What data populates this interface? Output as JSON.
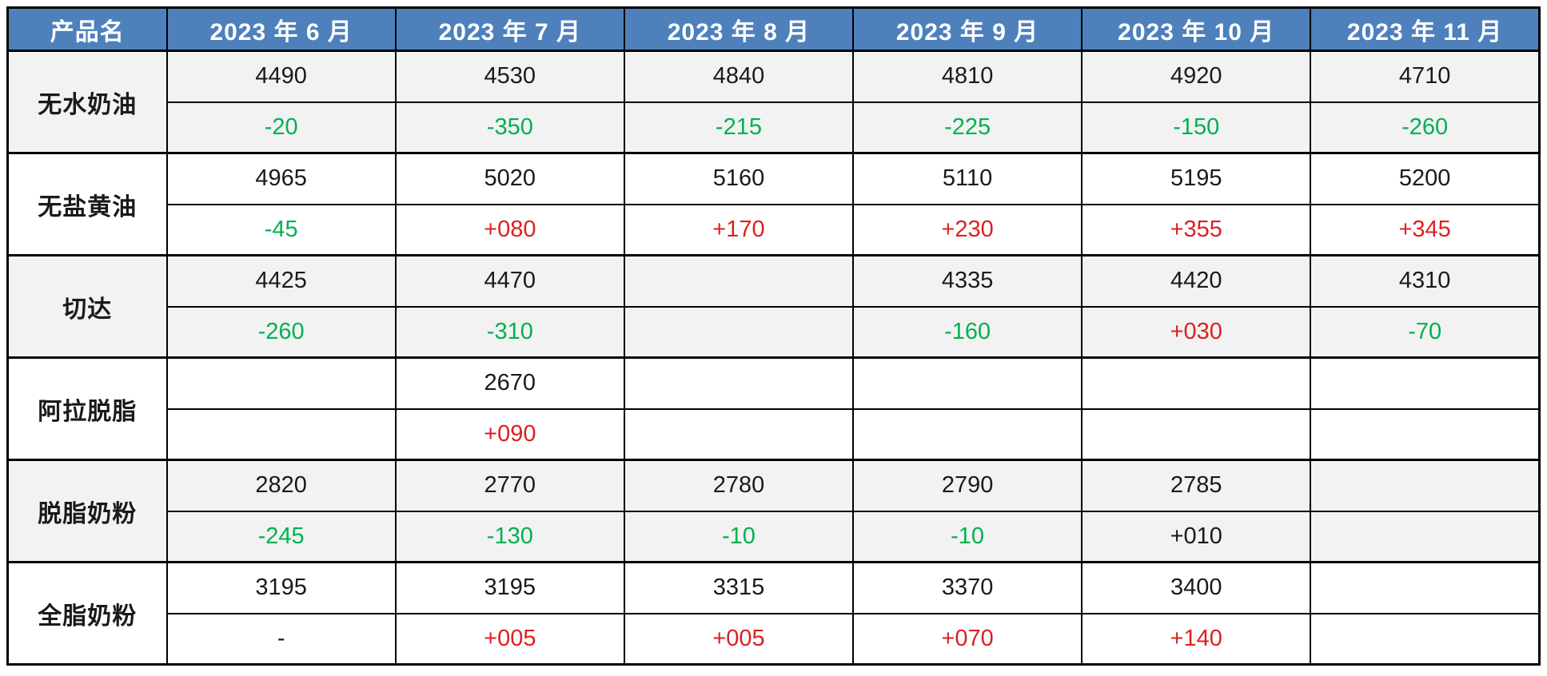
{
  "colors": {
    "header_bg": "#4E80BC",
    "header_text": "#FFFFFF",
    "band_gray": "#F2F2F2",
    "band_white": "#FFFFFF",
    "negative_green": "#00B050",
    "positive_red": "#DC2020",
    "neutral_black": "#1A1A1A",
    "border": "#000000"
  },
  "header": {
    "columns": [
      "产品名",
      "2023 年 6 月",
      "2023 年 7 月",
      "2023 年 8 月",
      "2023 年 9 月",
      "2023 年 10 月",
      "2023 年 11 月"
    ]
  },
  "products": [
    {
      "name": "无水奶油",
      "prices": [
        "4490",
        "4530",
        "4840",
        "4810",
        "4920",
        "4710"
      ],
      "changes": [
        {
          "text": "-20",
          "color": "green"
        },
        {
          "text": "-350",
          "color": "green"
        },
        {
          "text": "-215",
          "color": "green"
        },
        {
          "text": "-225",
          "color": "green"
        },
        {
          "text": "-150",
          "color": "green"
        },
        {
          "text": "-260",
          "color": "green"
        }
      ]
    },
    {
      "name": "无盐黄油",
      "prices": [
        "4965",
        "5020",
        "5160",
        "5110",
        "5195",
        "5200"
      ],
      "changes": [
        {
          "text": "-45",
          "color": "green"
        },
        {
          "text": "+080",
          "color": "red"
        },
        {
          "text": "+170",
          "color": "red"
        },
        {
          "text": "+230",
          "color": "red"
        },
        {
          "text": "+355",
          "color": "red"
        },
        {
          "text": "+345",
          "color": "red"
        }
      ]
    },
    {
      "name": "切达",
      "prices": [
        "4425",
        "4470",
        "",
        "4335",
        "4420",
        "4310"
      ],
      "changes": [
        {
          "text": "-260",
          "color": "green"
        },
        {
          "text": "-310",
          "color": "green"
        },
        {
          "text": "",
          "color": "black"
        },
        {
          "text": "-160",
          "color": "green"
        },
        {
          "text": "+030",
          "color": "red"
        },
        {
          "text": "-70",
          "color": "green"
        }
      ]
    },
    {
      "name": "阿拉脱脂",
      "prices": [
        "",
        "2670",
        "",
        "",
        "",
        ""
      ],
      "changes": [
        {
          "text": "",
          "color": "black"
        },
        {
          "text": "+090",
          "color": "red"
        },
        {
          "text": "",
          "color": "black"
        },
        {
          "text": "",
          "color": "black"
        },
        {
          "text": "",
          "color": "black"
        },
        {
          "text": "",
          "color": "black"
        }
      ]
    },
    {
      "name": "脱脂奶粉",
      "prices": [
        "2820",
        "2770",
        "2780",
        "2790",
        "2785",
        ""
      ],
      "changes": [
        {
          "text": "-245",
          "color": "green"
        },
        {
          "text": "-130",
          "color": "green"
        },
        {
          "text": "-10",
          "color": "green"
        },
        {
          "text": "-10",
          "color": "green"
        },
        {
          "text": "+010",
          "color": "black"
        },
        {
          "text": "",
          "color": "black"
        }
      ]
    },
    {
      "name": "全脂奶粉",
      "prices": [
        "3195",
        "3195",
        "3315",
        "3370",
        "3400",
        ""
      ],
      "changes": [
        {
          "text": "-",
          "color": "black"
        },
        {
          "text": "+005",
          "color": "red"
        },
        {
          "text": "+005",
          "color": "red"
        },
        {
          "text": "+070",
          "color": "red"
        },
        {
          "text": "+140",
          "color": "red"
        },
        {
          "text": "",
          "color": "black"
        }
      ]
    }
  ]
}
